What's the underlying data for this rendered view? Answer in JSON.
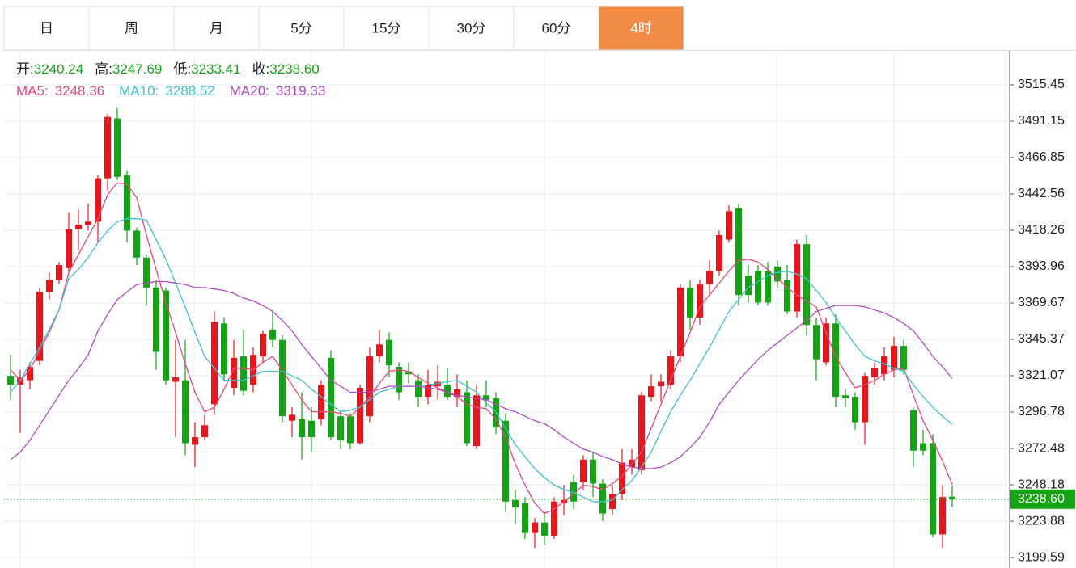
{
  "tabs": {
    "items": [
      "日",
      "周",
      "月",
      "5分",
      "15分",
      "30分",
      "60分",
      "4时"
    ],
    "active": 7,
    "active_color": "#f28b45"
  },
  "info": [
    {
      "label": "开:",
      "value": "3240.24"
    },
    {
      "label": "高:",
      "value": "3247.69"
    },
    {
      "label": "低:",
      "value": "3233.41"
    },
    {
      "label": "收:",
      "value": "3238.60"
    }
  ],
  "chart_data": {
    "type": "candlestick",
    "up_color": "#e8161b",
    "down_color": "#13a313",
    "open": [
      3321,
      3315,
      3318,
      3331,
      3377,
      3385,
      3393,
      3419,
      3422,
      3424,
      3453,
      3493,
      3455,
      3418,
      3400,
      3380,
      3378,
      3317,
      3318,
      3275,
      3280,
      3302,
      3356,
      3313,
      3334,
      3315,
      3334,
      3352,
      3345,
      3291,
      3292,
      3291,
      3292,
      3333,
      3294,
      3294,
      3276,
      3294,
      3334,
      3345,
      3327,
      3324,
      3318,
      3307,
      3314,
      3315,
      3307,
      3310,
      3274,
      3308,
      3306,
      3291,
      3238,
      3236,
      3216,
      3223,
      3214,
      3236,
      3250,
      3250,
      3265,
      3249,
      3232,
      3242,
      3260,
      3258,
      3307,
      3314,
      3315,
      3334,
      3380,
      3360,
      3382,
      3391,
      3412,
      3433,
      3388,
      3391,
      3391,
      3394,
      3385,
      3364,
      3409,
      3355,
      3330,
      3356,
      3308,
      3307,
      3290,
      3320,
      3322,
      3325,
      3341,
      3298,
      3276,
      3276,
      3215,
      3240.24
    ],
    "high": [
      3335,
      3325,
      3330,
      3380,
      3390,
      3397,
      3430,
      3432,
      3436,
      3455,
      3496,
      3500,
      3458,
      3420,
      3402,
      3385,
      3380,
      3345,
      3345,
      3290,
      3295,
      3364,
      3360,
      3345,
      3352,
      3340,
      3351,
      3365,
      3348,
      3300,
      3310,
      3300,
      3318,
      3338,
      3298,
      3296,
      3315,
      3340,
      3352,
      3350,
      3330,
      3330,
      3322,
      3325,
      3328,
      3326,
      3322,
      3318,
      3315,
      3318,
      3310,
      3296,
      3245,
      3240,
      3226,
      3230,
      3240,
      3248,
      3255,
      3268,
      3270,
      3252,
      3248,
      3272,
      3272,
      3310,
      3322,
      3322,
      3338,
      3382,
      3385,
      3385,
      3398,
      3418,
      3435,
      3436,
      3395,
      3395,
      3397,
      3398,
      3395,
      3412,
      3415,
      3360,
      3360,
      3362,
      3312,
      3310,
      3323,
      3330,
      3340,
      3347,
      3345,
      3300,
      3285,
      3282,
      3248,
      3247.69
    ],
    "low": [
      3305,
      3283,
      3312,
      3328,
      3372,
      3382,
      3390,
      3405,
      3418,
      3410,
      3445,
      3452,
      3410,
      3395,
      3368,
      3325,
      3315,
      3280,
      3268,
      3260,
      3278,
      3295,
      3318,
      3308,
      3308,
      3310,
      3330,
      3340,
      3290,
      3280,
      3265,
      3270,
      3288,
      3278,
      3272,
      3272,
      3275,
      3290,
      3330,
      3320,
      3305,
      3316,
      3300,
      3302,
      3305,
      3305,
      3300,
      3274,
      3272,
      3300,
      3282,
      3230,
      3222,
      3212,
      3206,
      3208,
      3212,
      3228,
      3232,
      3245,
      3240,
      3224,
      3228,
      3238,
      3255,
      3255,
      3304,
      3304,
      3312,
      3330,
      3352,
      3355,
      3375,
      3388,
      3410,
      3368,
      3370,
      3368,
      3368,
      3380,
      3362,
      3360,
      3348,
      3318,
      3328,
      3300,
      3300,
      3285,
      3275,
      3315,
      3318,
      3320,
      3322,
      3260,
      3268,
      3213,
      3206,
      3233.41
    ],
    "close": [
      3315,
      3320,
      3327,
      3377,
      3385,
      3395,
      3419,
      3422,
      3424,
      3453,
      3494,
      3454,
      3418,
      3400,
      3380,
      3337,
      3318,
      3320,
      3276,
      3280,
      3288,
      3357,
      3322,
      3333,
      3311,
      3335,
      3349,
      3345,
      3294,
      3295,
      3280,
      3280,
      3315,
      3280,
      3278,
      3276,
      3313,
      3334,
      3342,
      3328,
      3310,
      3322,
      3307,
      3315,
      3317,
      3307,
      3312,
      3276,
      3308,
      3305,
      3287,
      3237,
      3233,
      3216,
      3223,
      3214,
      3237,
      3238,
      3237,
      3265,
      3249,
      3229,
      3242,
      3263,
      3265,
      3308,
      3314,
      3317,
      3334,
      3380,
      3360,
      3382,
      3391,
      3415,
      3431,
      3375,
      3375,
      3370,
      3370,
      3384,
      3364,
      3409,
      3355,
      3332,
      3356,
      3307,
      3306,
      3290,
      3321,
      3326,
      3334,
      3341,
      3325,
      3271,
      3271,
      3215,
      3240,
      3238.6
    ],
    "series": [
      {
        "name": "MA5:",
        "color": "#e5487a",
        "values": [
          3325,
          3318,
          3325,
          3338,
          3350,
          3365,
          3390,
          3402,
          3414,
          3426,
          3442,
          3450,
          3449,
          3440,
          3415,
          3392,
          3370,
          3350,
          3329,
          3310,
          3297,
          3300,
          3312,
          3326,
          3326,
          3325,
          3330,
          3334,
          3325,
          3315,
          3305,
          3297,
          3297,
          3297,
          3296,
          3294,
          3300,
          3307,
          3316,
          3324,
          3325,
          3324,
          3320,
          3316,
          3313,
          3310,
          3307,
          3302,
          3300,
          3299,
          3292,
          3280,
          3262,
          3248,
          3236,
          3229,
          3232,
          3237,
          3242,
          3248,
          3247,
          3245,
          3249,
          3254,
          3262,
          3270,
          3286,
          3302,
          3318,
          3334,
          3350,
          3367,
          3375,
          3383,
          3391,
          3398,
          3399,
          3397,
          3392,
          3386,
          3380,
          3375,
          3371,
          3367,
          3350,
          3334,
          3323,
          3313,
          3315,
          3318,
          3322,
          3325,
          3326,
          3308,
          3291,
          3278,
          3264,
          3248.36
        ]
      },
      {
        "name": "MA10:",
        "color": "#3fc1d3",
        "values": [
          3310,
          3318,
          3329,
          3340,
          3352,
          3365,
          3386,
          3392,
          3400,
          3410,
          3418,
          3424,
          3426,
          3426,
          3425,
          3412,
          3399,
          3383,
          3367,
          3350,
          3334,
          3326,
          3318,
          3318,
          3318,
          3321,
          3324,
          3324,
          3324,
          3321,
          3318,
          3312,
          3307,
          3302,
          3297,
          3298,
          3300,
          3305,
          3310,
          3312,
          3314,
          3314,
          3314,
          3315,
          3316,
          3317,
          3318,
          3314,
          3310,
          3303,
          3297,
          3286,
          3275,
          3267,
          3259,
          3253,
          3248,
          3245,
          3243,
          3240,
          3237,
          3237,
          3238,
          3245,
          3251,
          3260,
          3270,
          3284,
          3297,
          3308,
          3318,
          3329,
          3340,
          3352,
          3364,
          3372,
          3380,
          3384,
          3388,
          3390,
          3391,
          3389,
          3386,
          3378,
          3370,
          3360,
          3351,
          3342,
          3334,
          3331,
          3329,
          3326,
          3324,
          3315,
          3307,
          3300,
          3294,
          3288.52
        ]
      },
      {
        "name": "MA20:",
        "color": "#b24bc0",
        "values": [
          3265,
          3270,
          3278,
          3288,
          3298,
          3308,
          3318,
          3326,
          3335,
          3351,
          3362,
          3372,
          3377,
          3382,
          3383,
          3384,
          3384,
          3383,
          3382,
          3380,
          3380,
          3379,
          3378,
          3376,
          3373,
          3371,
          3368,
          3364,
          3358,
          3351,
          3342,
          3334,
          3326,
          3318,
          3314,
          3310,
          3310,
          3310,
          3312,
          3314,
          3314,
          3314,
          3314,
          3313,
          3312,
          3310,
          3308,
          3307,
          3306,
          3305,
          3302,
          3299,
          3297,
          3294,
          3291,
          3289,
          3285,
          3280,
          3276,
          3272,
          3270,
          3267,
          3265,
          3262,
          3260,
          3259,
          3259,
          3260,
          3263,
          3267,
          3273,
          3280,
          3290,
          3302,
          3310,
          3318,
          3325,
          3332,
          3338,
          3343,
          3348,
          3353,
          3358,
          3364,
          3366,
          3368,
          3368,
          3368,
          3367,
          3365,
          3363,
          3360,
          3356,
          3351,
          3343,
          3334,
          3327,
          3319.33
        ]
      }
    ],
    "last_price": {
      "value": 3238.6,
      "label": "3238.60",
      "color": "#13a313"
    },
    "ylim": [
      3192.6,
      3538.1
    ],
    "yticks": [
      3199.59,
      3223.88,
      3248.18,
      3272.48,
      3296.78,
      3321.07,
      3345.37,
      3369.67,
      3393.96,
      3418.26,
      3442.56,
      3466.85,
      3491.15,
      3515.45
    ],
    "grid": true
  }
}
